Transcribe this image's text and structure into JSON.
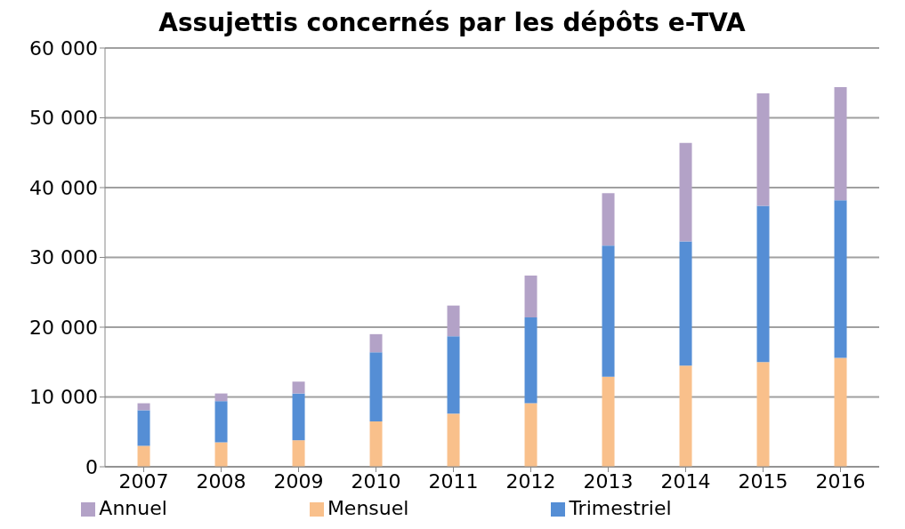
{
  "chart_data": {
    "type": "bar",
    "title": "Assujettis concernés par les dépôts e-TVA",
    "stacked": true,
    "grid": "y",
    "legend": "bottom",
    "categories": [
      "2007",
      "2008",
      "2009",
      "2010",
      "2011",
      "2012",
      "2013",
      "2014",
      "2015",
      "2016"
    ],
    "ylim": [
      0,
      60000
    ],
    "yticks": [
      {
        "value": 0,
        "label": "0"
      },
      {
        "value": 10000,
        "label": "10 000"
      },
      {
        "value": 20000,
        "label": "20 000"
      },
      {
        "value": 30000,
        "label": "30 000"
      },
      {
        "value": 40000,
        "label": "40 000"
      },
      {
        "value": 50000,
        "label": "50 000"
      },
      {
        "value": 60000,
        "label": "60 000"
      }
    ],
    "series": [
      {
        "name": "Mensuel",
        "color": "#f9c08b",
        "values": [
          3000,
          3500,
          3800,
          6500,
          7600,
          9100,
          12900,
          14500,
          15000,
          15600
        ]
      },
      {
        "name": "Trimestriel",
        "color": "#558ed5",
        "values": [
          5100,
          5900,
          6700,
          9900,
          11100,
          12300,
          18800,
          17800,
          22400,
          22600
        ]
      },
      {
        "name": "Annuel",
        "color": "#b3a2c7",
        "values": [
          1000,
          1100,
          1700,
          2600,
          4400,
          6000,
          7500,
          14100,
          16100,
          16200
        ]
      }
    ]
  }
}
